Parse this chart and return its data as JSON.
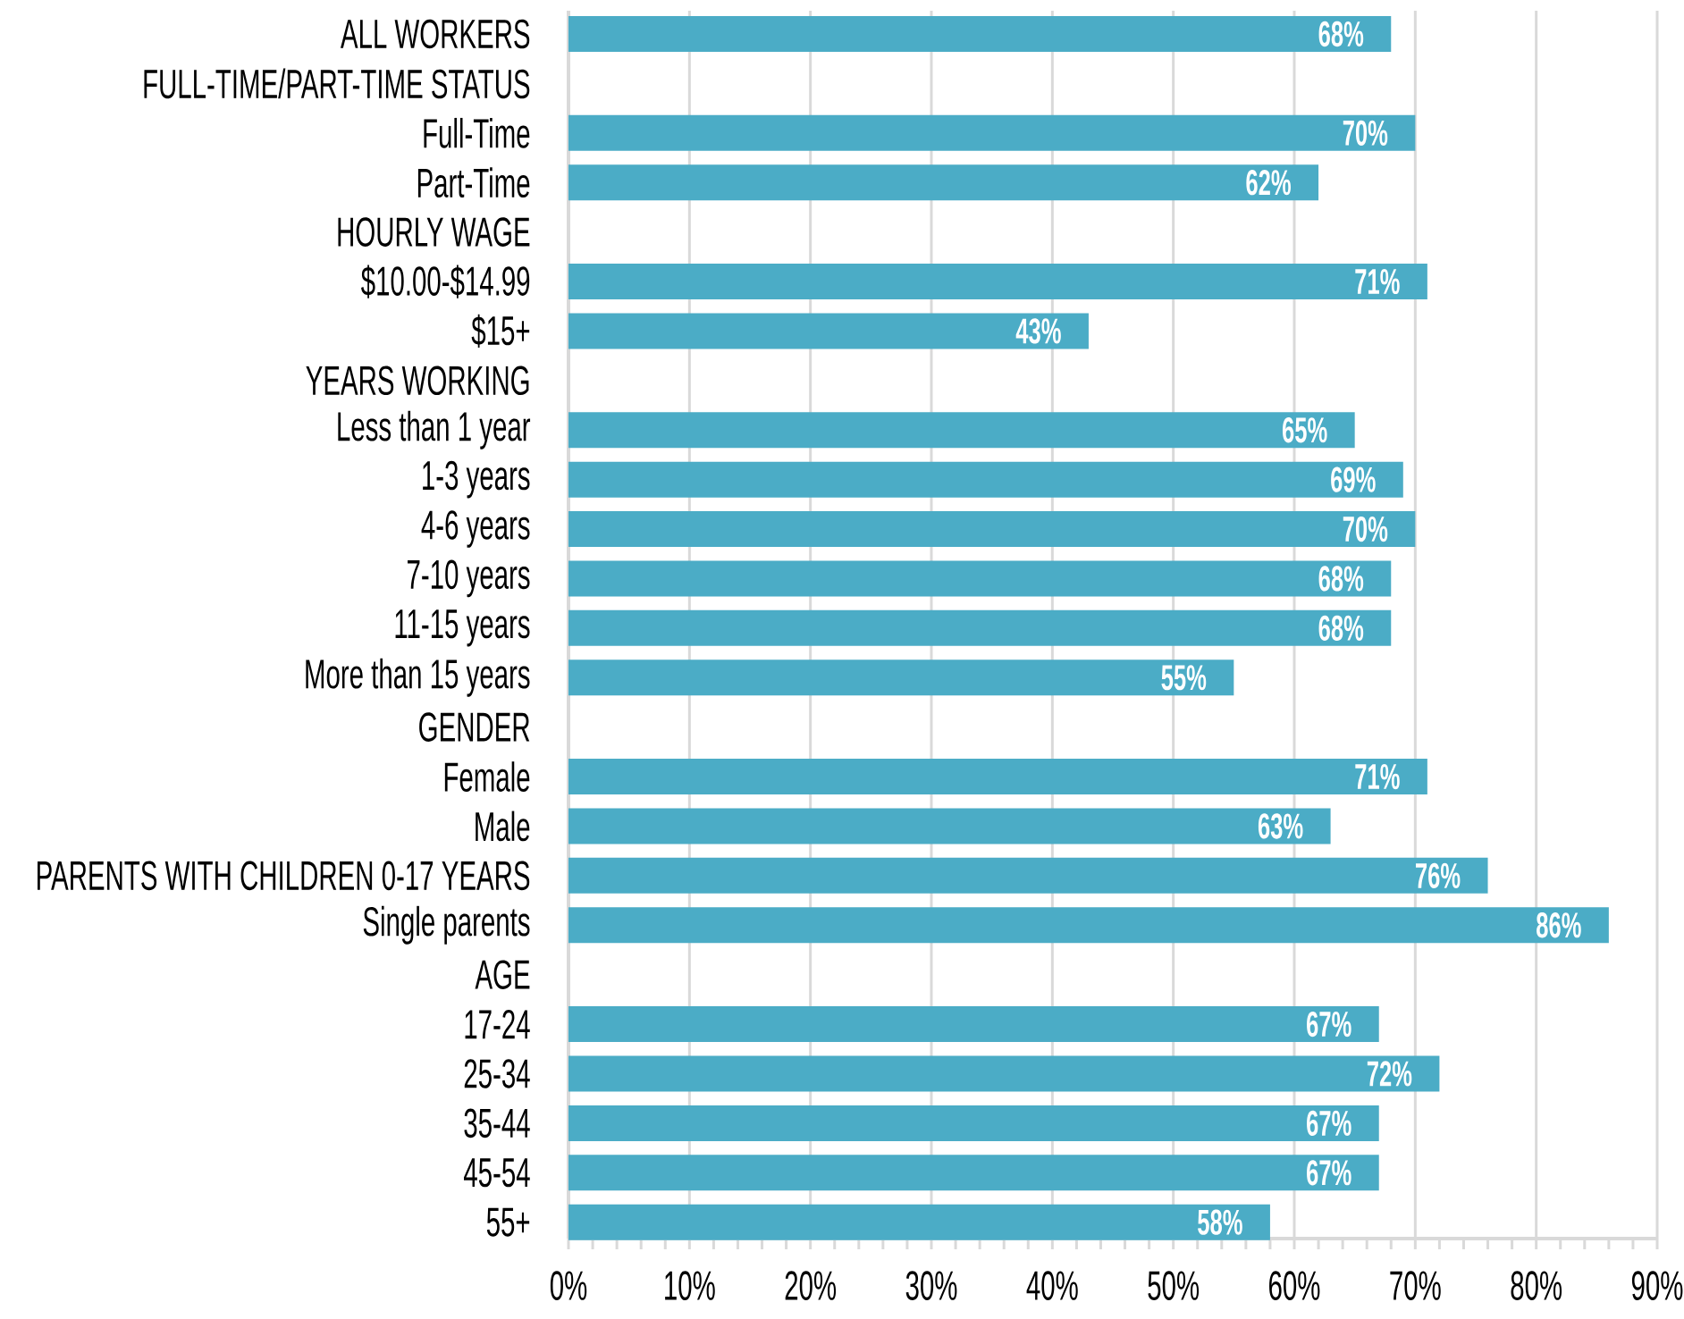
{
  "chart_data": {
    "type": "bar",
    "orientation": "horizontal",
    "categories": [
      "ALL WORKERS",
      "FULL-TIME/PART-TIME STATUS",
      "Full-Time",
      "Part-Time",
      "HOURLY WAGE",
      "$10.00-$14.99",
      "$15+",
      "YEARS WORKING",
      "Less than 1 year",
      "1-3 years",
      "4-6 years",
      "7-10 years",
      "11-15 years",
      "More than 15 years",
      "GENDER",
      "Female",
      "Male",
      "PARENTS WITH CHILDREN 0-17 YEARS",
      "Single parents",
      "AGE",
      "17-24",
      "25-34",
      "35-44",
      "45-54",
      "55+"
    ],
    "values": [
      68,
      null,
      70,
      62,
      null,
      71,
      43,
      null,
      65,
      69,
      70,
      68,
      68,
      55,
      null,
      71,
      63,
      76,
      86,
      null,
      67,
      72,
      67,
      67,
      58
    ],
    "value_labels": [
      "68%",
      null,
      "70%",
      "62%",
      null,
      "71%",
      "43%",
      null,
      "65%",
      "69%",
      "70%",
      "68%",
      "68%",
      "55%",
      null,
      "71%",
      "63%",
      "76%",
      "86%",
      null,
      "67%",
      "72%",
      "67%",
      "67%",
      "58%"
    ],
    "color": "#4bacc6",
    "xlim": [
      0,
      90
    ],
    "xticks": [
      {
        "value": 0,
        "label": "0%"
      },
      {
        "value": 2,
        "label": null
      },
      {
        "value": 4,
        "label": null
      },
      {
        "value": 6,
        "label": null
      },
      {
        "value": 8,
        "label": null
      },
      {
        "value": 10,
        "label": "10%"
      },
      {
        "value": 12,
        "label": null
      },
      {
        "value": 14,
        "label": null
      },
      {
        "value": 16,
        "label": null
      },
      {
        "value": 18,
        "label": null
      },
      {
        "value": 20,
        "label": "20%"
      },
      {
        "value": 22,
        "label": null
      },
      {
        "value": 24,
        "label": null
      },
      {
        "value": 26,
        "label": null
      },
      {
        "value": 28,
        "label": null
      },
      {
        "value": 30,
        "label": "30%"
      },
      {
        "value": 32,
        "label": null
      },
      {
        "value": 34,
        "label": null
      },
      {
        "value": 36,
        "label": null
      },
      {
        "value": 38,
        "label": null
      },
      {
        "value": 40,
        "label": "40%"
      },
      {
        "value": 42,
        "label": null
      },
      {
        "value": 44,
        "label": null
      },
      {
        "value": 46,
        "label": null
      },
      {
        "value": 48,
        "label": null
      },
      {
        "value": 50,
        "label": "50%"
      },
      {
        "value": 52,
        "label": null
      },
      {
        "value": 54,
        "label": null
      },
      {
        "value": 56,
        "label": null
      },
      {
        "value": 58,
        "label": null
      },
      {
        "value": 60,
        "label": "60%"
      },
      {
        "value": 62,
        "label": null
      },
      {
        "value": 64,
        "label": null
      },
      {
        "value": 66,
        "label": null
      },
      {
        "value": 68,
        "label": null
      },
      {
        "value": 70,
        "label": "70%"
      },
      {
        "value": 72,
        "label": null
      },
      {
        "value": 74,
        "label": null
      },
      {
        "value": 76,
        "label": null
      },
      {
        "value": 78,
        "label": null
      },
      {
        "value": 80,
        "label": "80%"
      },
      {
        "value": 82,
        "label": null
      },
      {
        "value": 84,
        "label": null
      },
      {
        "value": 86,
        "label": null
      },
      {
        "value": 88,
        "label": null
      },
      {
        "value": 90,
        "label": "90%"
      }
    ],
    "grid": "x"
  }
}
